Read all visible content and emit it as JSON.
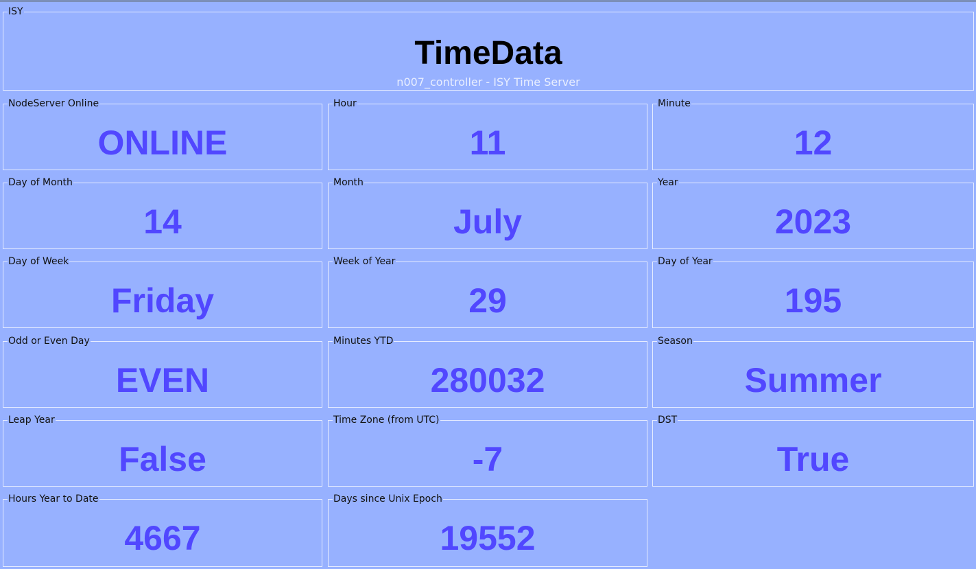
{
  "header": {
    "group_label": "ISY",
    "title": "TimeData",
    "subtitle": "n007_controller - ISY Time Server"
  },
  "fields": {
    "nodeserver_online": {
      "label": "NodeServer Online",
      "value": "ONLINE"
    },
    "hour": {
      "label": "Hour",
      "value": "11"
    },
    "minute": {
      "label": "Minute",
      "value": "12"
    },
    "day_of_month": {
      "label": "Day of Month",
      "value": "14"
    },
    "month": {
      "label": "Month",
      "value": "July"
    },
    "year": {
      "label": "Year",
      "value": "2023"
    },
    "day_of_week": {
      "label": "Day of Week",
      "value": "Friday"
    },
    "week_of_year": {
      "label": "Week of Year",
      "value": "29"
    },
    "day_of_year": {
      "label": "Day of Year",
      "value": "195"
    },
    "odd_even_day": {
      "label": "Odd or Even Day",
      "value": "EVEN"
    },
    "minutes_ytd": {
      "label": "Minutes YTD",
      "value": "280032"
    },
    "season": {
      "label": "Season",
      "value": "Summer"
    },
    "leap_year": {
      "label": "Leap Year",
      "value": "False"
    },
    "time_zone": {
      "label": "Time Zone (from UTC)",
      "value": "-7"
    },
    "dst": {
      "label": "DST",
      "value": "True"
    },
    "hours_ytd": {
      "label": "Hours Year to Date",
      "value": "4667"
    },
    "days_since_epoch": {
      "label": "Days since Unix Epoch",
      "value": "19552"
    }
  },
  "colors": {
    "background": "#97b1ff",
    "value_text": "#5147ff",
    "title_text": "#000000",
    "subtitle_text": "#e8eeff",
    "border": "#e6ecff"
  }
}
